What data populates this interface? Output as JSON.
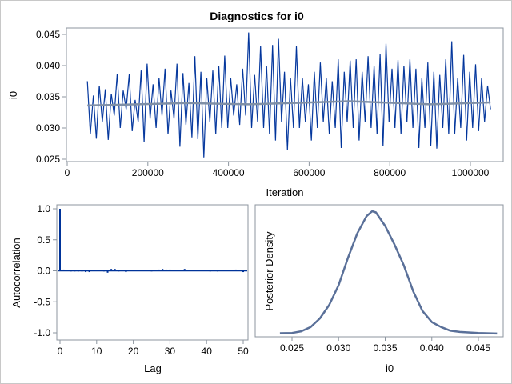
{
  "title": "Diagnostics for i0",
  "colors": {
    "trace": "#003399",
    "trace_light": "#5b7fc8",
    "smooth": "#7f8fa6",
    "density": "#5a7099",
    "frame": "#8c959f"
  },
  "chart_data": [
    {
      "type": "line",
      "name": "trace",
      "xlabel": "Iteration",
      "ylabel": "i0",
      "xlim": [
        50000,
        1050000
      ],
      "ylim": [
        0.025,
        0.045
      ],
      "xticks": [
        "0",
        "200000",
        "400000",
        "600000",
        "800000",
        "1000000"
      ],
      "xtick_values": [
        0,
        200000,
        400000,
        600000,
        800000,
        1000000
      ],
      "yticks": [
        "0.025",
        "0.030",
        "0.035",
        "0.040",
        "0.045"
      ],
      "ytick_values": [
        0.025,
        0.03,
        0.035,
        0.04,
        0.045
      ],
      "x_range": [
        50000,
        1050000
      ],
      "values": [
        0.0375,
        0.029,
        0.0352,
        0.0283,
        0.0368,
        0.031,
        0.0362,
        0.0281,
        0.0355,
        0.032,
        0.0387,
        0.03,
        0.036,
        0.033,
        0.0386,
        0.0295,
        0.0345,
        0.031,
        0.0392,
        0.0277,
        0.0403,
        0.0315,
        0.037,
        0.03,
        0.038,
        0.032,
        0.0395,
        0.029,
        0.036,
        0.0315,
        0.0403,
        0.027,
        0.0388,
        0.0305,
        0.0372,
        0.0285,
        0.0415,
        0.0282,
        0.039,
        0.0253,
        0.038,
        0.031,
        0.0392,
        0.029,
        0.04,
        0.03,
        0.0416,
        0.03,
        0.038,
        0.032,
        0.037,
        0.0305,
        0.0395,
        0.032,
        0.0453,
        0.03,
        0.0385,
        0.031,
        0.0431,
        0.03,
        0.04,
        0.029,
        0.0433,
        0.028,
        0.0443,
        0.031,
        0.039,
        0.0265,
        0.038,
        0.03,
        0.0431,
        0.03,
        0.038,
        0.031,
        0.037,
        0.028,
        0.039,
        0.03,
        0.0405,
        0.031,
        0.038,
        0.029,
        0.0375,
        0.03,
        0.041,
        0.0268,
        0.039,
        0.031,
        0.0408,
        0.03,
        0.041,
        0.028,
        0.039,
        0.031,
        0.0415,
        0.03,
        0.04,
        0.029,
        0.0418,
        0.0271,
        0.0435,
        0.031,
        0.0395,
        0.03,
        0.0409,
        0.029,
        0.04,
        0.031,
        0.041,
        0.03,
        0.0395,
        0.0268,
        0.038,
        0.03,
        0.0405,
        0.0271,
        0.039,
        0.0267,
        0.0385,
        0.03,
        0.041,
        0.029,
        0.0439,
        0.029,
        0.038,
        0.03,
        0.0417,
        0.028,
        0.039,
        0.03,
        0.0402,
        0.0295,
        0.038,
        0.031,
        0.0368,
        0.033
      ],
      "smooth": {
        "x": [
          50000,
          300000,
          450000,
          700000,
          900000,
          1050000
        ],
        "y": [
          0.0336,
          0.034,
          0.0338,
          0.0343,
          0.0338,
          0.0341
        ]
      }
    },
    {
      "type": "bar",
      "name": "autocorrelation",
      "xlabel": "Lag",
      "ylabel": "Autocorrelation",
      "xlim": [
        0,
        51
      ],
      "ylim": [
        -1.05,
        1.05
      ],
      "xticks": [
        "0",
        "10",
        "20",
        "30",
        "40",
        "50"
      ],
      "xtick_values": [
        0,
        10,
        20,
        30,
        40,
        50
      ],
      "yticks": [
        "-1.0",
        "-0.5",
        "0.0",
        "0.5",
        "1.0"
      ],
      "ytick_values": [
        -1.0,
        -0.5,
        0.0,
        0.5,
        1.0
      ],
      "values": [
        1.0,
        0.02,
        0.0,
        -0.01,
        -0.01,
        -0.01,
        -0.01,
        -0.02,
        -0.02,
        0.0,
        0.0,
        0.01,
        -0.01,
        -0.03,
        0.03,
        0.03,
        -0.01,
        0.01,
        -0.02,
        0.0,
        0.01,
        0.0,
        0.0,
        0.0,
        0.0,
        -0.01,
        0.01,
        0.02,
        0.03,
        0.02,
        0.02,
        0.0,
        0.01,
        0.01,
        0.03,
        0.0,
        0.01,
        0.0,
        0.0,
        0.0,
        0.0,
        -0.01,
        0.01,
        -0.01,
        0.01,
        0.0,
        0.0,
        0.01,
        0.02,
        0.0,
        -0.02
      ]
    },
    {
      "type": "line",
      "name": "posterior-density",
      "xlabel": "i0",
      "ylabel": "Posterior Density",
      "xlim": [
        0.0235,
        0.0473
      ],
      "ylim": [
        0,
        1.02
      ],
      "xticks": [
        "0.025",
        "0.030",
        "0.035",
        "0.040",
        "0.045"
      ],
      "xtick_values": [
        0.025,
        0.03,
        0.035,
        0.04,
        0.045
      ],
      "x": [
        0.0237,
        0.025,
        0.026,
        0.027,
        0.028,
        0.029,
        0.03,
        0.031,
        0.032,
        0.033,
        0.0336,
        0.034,
        0.035,
        0.036,
        0.037,
        0.038,
        0.039,
        0.04,
        0.041,
        0.042,
        0.043,
        0.045,
        0.047
      ],
      "y": [
        0.01,
        0.012,
        0.025,
        0.06,
        0.13,
        0.24,
        0.4,
        0.62,
        0.82,
        0.96,
        1.0,
        0.99,
        0.88,
        0.73,
        0.56,
        0.35,
        0.19,
        0.1,
        0.06,
        0.03,
        0.02,
        0.012,
        0.007
      ]
    }
  ]
}
